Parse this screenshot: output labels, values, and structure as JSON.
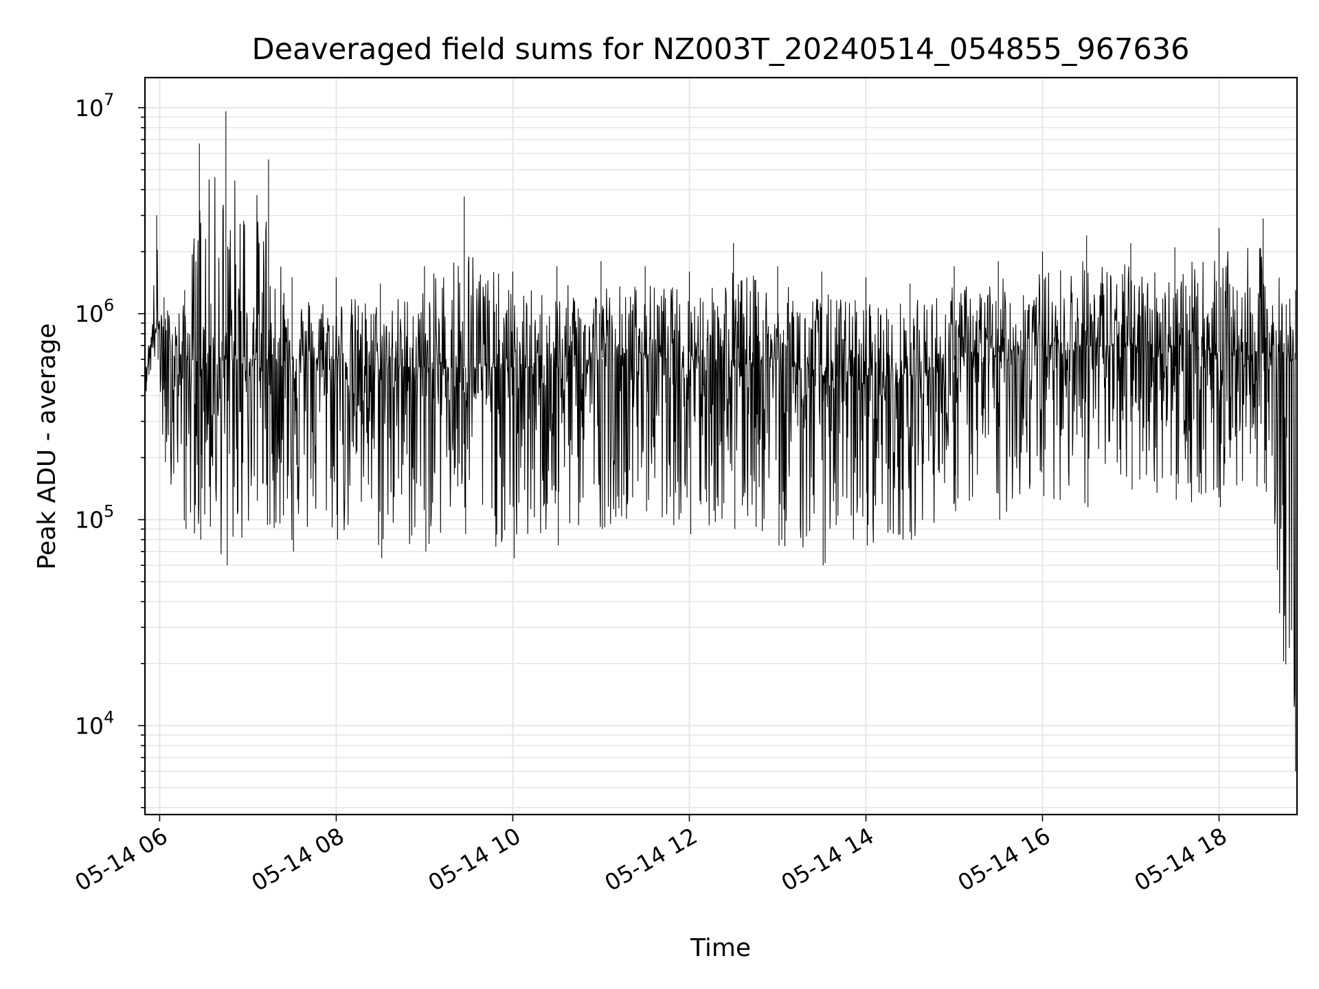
{
  "chart_data": {
    "type": "line",
    "title": "Deaveraged field sums for NZ003T_20240514_054855_967636",
    "xlabel": "Time",
    "ylabel": "Peak ADU - average",
    "y_scale": "log",
    "ylim": [
      3700,
      14000000
    ],
    "xlim": [
      "2024-05-14 05:50",
      "2024-05-14 18:53"
    ],
    "x_ticks": [
      {
        "value": "2024-05-14 06:00",
        "label": "05-14 06"
      },
      {
        "value": "2024-05-14 08:00",
        "label": "05-14 08"
      },
      {
        "value": "2024-05-14 10:00",
        "label": "05-14 10"
      },
      {
        "value": "2024-05-14 12:00",
        "label": "05-14 12"
      },
      {
        "value": "2024-05-14 14:00",
        "label": "05-14 14"
      },
      {
        "value": "2024-05-14 16:00",
        "label": "05-14 16"
      },
      {
        "value": "2024-05-14 18:00",
        "label": "05-14 18"
      }
    ],
    "y_ticks": [
      {
        "value": 10000,
        "base": "10",
        "exp": "4"
      },
      {
        "value": 100000,
        "base": "10",
        "exp": "5"
      },
      {
        "value": 1000000,
        "base": "10",
        "exp": "6"
      },
      {
        "value": 10000000,
        "base": "10",
        "exp": "7"
      }
    ],
    "grid": true,
    "line_color": "#000000",
    "grid_color": "#e6e6e6",
    "series": [
      {
        "values_described_as_envelope": true,
        "x": [
          "2024-05-14 05:50",
          "2024-05-14 05:58",
          "2024-05-14 06:03",
          "2024-05-14 06:17",
          "2024-05-14 06:27",
          "2024-05-14 06:45",
          "2024-05-14 07:14",
          "2024-05-14 07:30",
          "2024-05-14 08:00",
          "2024-05-14 08:30",
          "2024-05-14 09:00",
          "2024-05-14 09:27",
          "2024-05-14 10:00",
          "2024-05-14 10:30",
          "2024-05-14 11:00",
          "2024-05-14 11:30",
          "2024-05-14 12:00",
          "2024-05-14 12:30",
          "2024-05-14 13:00",
          "2024-05-14 13:30",
          "2024-05-14 14:00",
          "2024-05-14 14:30",
          "2024-05-14 15:00",
          "2024-05-14 15:30",
          "2024-05-14 16:00",
          "2024-05-14 16:30",
          "2024-05-14 17:00",
          "2024-05-14 17:30",
          "2024-05-14 18:00",
          "2024-05-14 18:30",
          "2024-05-14 18:52"
        ],
        "upper": [
          450000,
          3000000,
          1200000,
          1300000,
          6700000,
          9600000,
          5600000,
          1500000,
          1500000,
          1400000,
          1700000,
          3700000,
          1600000,
          1700000,
          1800000,
          1700000,
          1600000,
          2200000,
          1700000,
          1600000,
          1500000,
          1400000,
          1700000,
          1800000,
          2000000,
          2400000,
          2200000,
          2100000,
          2600000,
          2900000,
          1300000
        ],
        "lower": [
          420000,
          600000,
          190000,
          90000,
          80000,
          60000,
          95000,
          70000,
          80000,
          65000,
          70000,
          85000,
          65000,
          75000,
          90000,
          110000,
          85000,
          90000,
          75000,
          60000,
          75000,
          80000,
          110000,
          100000,
          130000,
          115000,
          140000,
          125000,
          115000,
          150000,
          6000
        ],
        "typical": [
          500000,
          900000,
          700000,
          600000,
          600000,
          600000,
          600000,
          600000,
          600000,
          550000,
          550000,
          550000,
          550000,
          550000,
          600000,
          650000,
          650000,
          600000,
          600000,
          500000,
          500000,
          500000,
          600000,
          650000,
          700000,
          700000,
          700000,
          700000,
          650000,
          650000,
          600000
        ]
      }
    ]
  }
}
